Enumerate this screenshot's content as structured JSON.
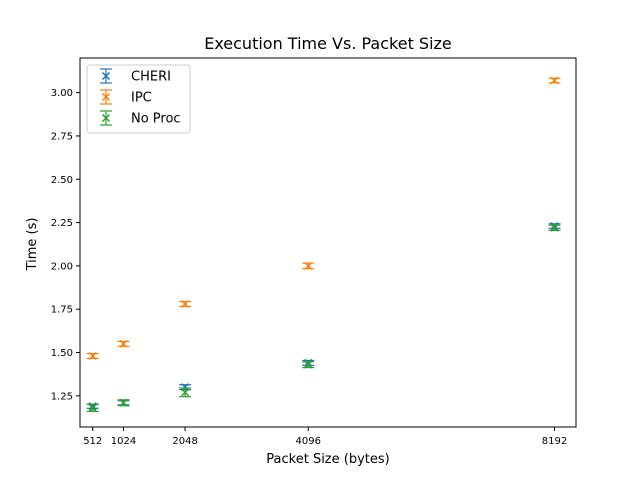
{
  "chart_data": {
    "type": "scatter",
    "title": "Execution Time Vs. Packet Size",
    "xlabel": "Packet Size (bytes)",
    "ylabel": "Time (s)",
    "x": [
      512,
      1024,
      2048,
      4096,
      8192
    ],
    "x_tick_labels": [
      "512",
      "1024",
      "2048",
      "4096",
      "8192"
    ],
    "xlim": [
      300,
      8550
    ],
    "ylim": [
      1.07,
      3.2
    ],
    "y_ticks": [
      1.25,
      1.5,
      1.75,
      2.0,
      2.25,
      2.5,
      2.75,
      3.0
    ],
    "y_tick_labels": [
      "1.25",
      "1.50",
      "1.75",
      "2.00",
      "2.25",
      "2.50",
      "2.75",
      "3.00"
    ],
    "marker": "x",
    "error_bars": true,
    "grid": false,
    "legend_position": "top-left",
    "series": [
      {
        "name": "CHERI",
        "color": "#1f77b4",
        "values": [
          1.19,
          1.21,
          1.3,
          1.44,
          2.23
        ],
        "errors": [
          0.012,
          0.012,
          0.014,
          0.014,
          0.013
        ]
      },
      {
        "name": "IPC",
        "color": "#ff7f0e",
        "values": [
          1.48,
          1.55,
          1.78,
          2.0,
          3.07
        ],
        "errors": [
          0.014,
          0.014,
          0.014,
          0.016,
          0.013
        ]
      },
      {
        "name": "No Proc",
        "color": "#2ca02c",
        "values": [
          1.18,
          1.21,
          1.27,
          1.43,
          2.22
        ],
        "errors": [
          0.02,
          0.017,
          0.025,
          0.017,
          0.015
        ]
      }
    ]
  }
}
